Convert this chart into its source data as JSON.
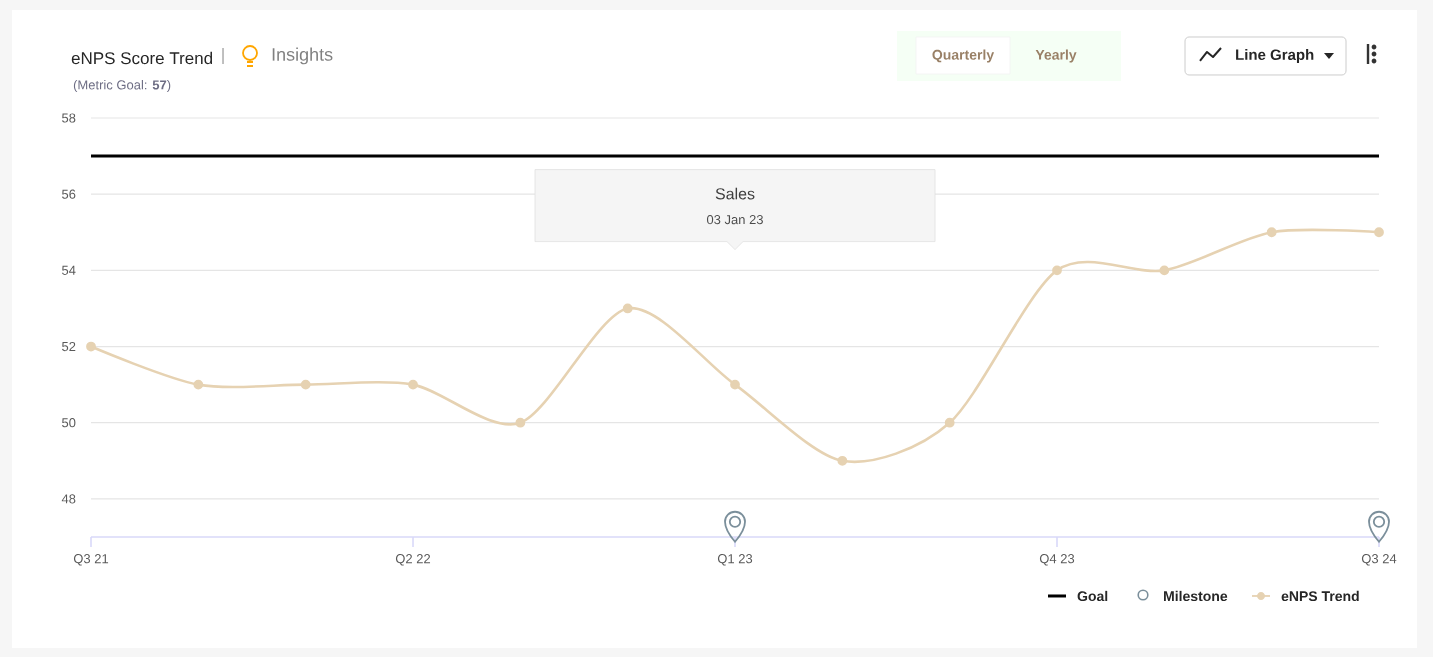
{
  "chart_data": {
    "type": "line",
    "title": "eNPS Score Trend",
    "subtitle": "(Metric Goal: **57**)",
    "categories": [
      "Q3 21",
      null,
      null,
      "Q2 22",
      null,
      null,
      "Q1 23",
      null,
      null,
      "Q4 23",
      null,
      null,
      "Q3 24"
    ],
    "series": [
      {
        "name": "eNPS Trend",
        "color": "#e6d2b2",
        "values": [
          52,
          51,
          51,
          51,
          50,
          53,
          51,
          49,
          50,
          54,
          54,
          55,
          55
        ]
      },
      {
        "name": "Milestone",
        "type": "scatter",
        "color": "#7b8f9b",
        "values": [
          null,
          null,
          null,
          null,
          null,
          null,
          47.4,
          null,
          null,
          null,
          null,
          null,
          47.4
        ]
      }
    ],
    "ylim": [
      47,
      58
    ],
    "yticks": [
      48,
      50,
      52,
      54,
      56,
      58
    ],
    "grid": "y",
    "marker": "circle",
    "legend": "bottom right",
    "ref_lines": [
      {
        "axis": "y",
        "value": 57,
        "label": "Goal",
        "color": "#000000"
      }
    ],
    "annotations": [
      "Sales",
      "03 Jan 23",
      "Insights",
      "Quarterly",
      "Yearly",
      "Line Graph"
    ]
  }
}
